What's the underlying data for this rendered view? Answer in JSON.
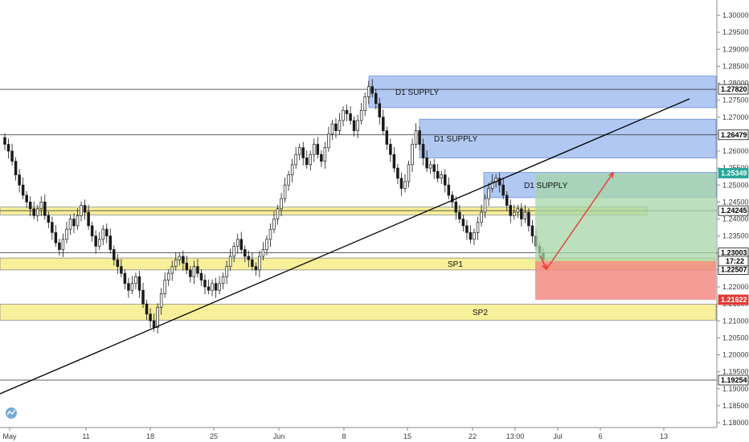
{
  "chart_data": {
    "type": "candlestick",
    "x_tick_labels": [
      "May",
      "11",
      "18",
      "25",
      "Jun",
      "8",
      "15",
      "22",
      "13:00",
      "Jul",
      "6",
      "13"
    ],
    "y_ticks": [
      "1.30000",
      "1.29500",
      "1.29000",
      "1.28500",
      "1.28000",
      "1.27500",
      "1.27000",
      "1.26500",
      "1.26000",
      "1.25500",
      "1.25000",
      "1.24500",
      "1.24000",
      "1.23500",
      "1.23000",
      "1.22500",
      "1.22000",
      "1.21500",
      "1.21000",
      "1.20500",
      "1.20000",
      "1.19500",
      "1.19000",
      "1.18500",
      "1.18000"
    ],
    "ylim": [
      1.1775,
      1.3025
    ],
    "grid": false,
    "horizontal_levels": [
      {
        "price": 1.2782,
        "label": "1.27820",
        "bg": "#ffffff",
        "fg": "#000000"
      },
      {
        "price": 1.26479,
        "label": "1.26479",
        "bg": "#ffffff",
        "fg": "#000000"
      },
      {
        "price": 1.24245,
        "label": "1.24245",
        "bg": "#ffffff",
        "fg": "#000000"
      },
      {
        "price": 1.23003,
        "label": "1.23003",
        "bg": "#ffffff",
        "fg": "#000000"
      },
      {
        "price": 1.19254,
        "label": "1.19254",
        "bg": "#ffffff",
        "fg": "#000000"
      }
    ],
    "price_tags": [
      {
        "price": 1.25349,
        "label": "1.25349",
        "bg": "#26a69a",
        "fg": "#ffffff"
      },
      {
        "price": 1.22507,
        "label": "1.22507",
        "bg": "#ffffff",
        "fg": "#000000"
      },
      {
        "price": 1.21622,
        "label": "1.21622",
        "bg": "#e53935",
        "fg": "#ffffff"
      }
    ],
    "countdown_label": "17:22",
    "zones": [
      {
        "label": "D1 SUPPLY",
        "type": "supply",
        "top": 1.2821,
        "bottom": 1.2728,
        "color": "#8fb0ec"
      },
      {
        "label": "D1 SUPPLY",
        "type": "supply",
        "top": 1.2694,
        "bottom": 1.258,
        "color": "#8fb0ec"
      },
      {
        "label": "D1 SUPPLY",
        "type": "supply",
        "top": 1.2537,
        "bottom": 1.2463,
        "color": "#8fb0ec"
      },
      {
        "label": "",
        "type": "level",
        "top": 1.2435,
        "bottom": 1.2412,
        "color": "#f5ea7a"
      },
      {
        "label": "SP1",
        "type": "support",
        "top": 1.2285,
        "bottom": 1.225,
        "color": "#f5ea7a"
      },
      {
        "label": "SP2",
        "type": "support",
        "top": 1.2149,
        "bottom": 1.2102,
        "color": "#f5ea7a"
      }
    ],
    "position": {
      "entry": 1.2276,
      "target": 1.25349,
      "stop": 1.21622,
      "profit_color": "#a5d6a7",
      "loss_color": "#f28b82"
    },
    "ohlc_closes": [
      1.262,
      1.26,
      1.257,
      1.253,
      1.25,
      1.247,
      1.245,
      1.243,
      1.241,
      1.243,
      1.245,
      1.241,
      1.239,
      1.236,
      1.233,
      1.231,
      1.234,
      1.237,
      1.24,
      1.238,
      1.241,
      1.244,
      1.242,
      1.238,
      1.235,
      1.232,
      1.234,
      1.237,
      1.235,
      1.231,
      1.228,
      1.226,
      1.224,
      1.221,
      1.219,
      1.221,
      1.223,
      1.219,
      1.215,
      1.212,
      1.21,
      1.208,
      1.214,
      1.218,
      1.222,
      1.224,
      1.226,
      1.228,
      1.229,
      1.227,
      1.225,
      1.223,
      1.226,
      1.224,
      1.222,
      1.22,
      1.219,
      1.221,
      1.219,
      1.221,
      1.223,
      1.226,
      1.229,
      1.232,
      1.234,
      1.231,
      1.229,
      1.228,
      1.226,
      1.225,
      1.229,
      1.231,
      1.234,
      1.237,
      1.24,
      1.243,
      1.246,
      1.25,
      1.253,
      1.256,
      1.259,
      1.261,
      1.258,
      1.256,
      1.259,
      1.262,
      1.259,
      1.257,
      1.261,
      1.265,
      1.268,
      1.266,
      1.269,
      1.272,
      1.271,
      1.269,
      1.266,
      1.269,
      1.272,
      1.276,
      1.279,
      1.277,
      1.274,
      1.27,
      1.266,
      1.262,
      1.259,
      1.255,
      1.252,
      1.249,
      1.251,
      1.256,
      1.262,
      1.266,
      1.262,
      1.258,
      1.255,
      1.256,
      1.254,
      1.252,
      1.253,
      1.25,
      1.247,
      1.245,
      1.242,
      1.24,
      1.238,
      1.236,
      1.234,
      1.236,
      1.239,
      1.242,
      1.246,
      1.249,
      1.251,
      1.252,
      1.25,
      1.247,
      1.244,
      1.241,
      1.242,
      1.243,
      1.24,
      1.242,
      1.238,
      1.235,
      1.232,
      1.23,
      1.228
    ],
    "trendline": {
      "start": [
        "2020-05-01",
        1.1885
      ],
      "end": [
        "2020-07-12",
        1.276
      ]
    },
    "projection_arrows": [
      {
        "color": "#e53935",
        "from": [
          1.2315
        ],
        "to": [
          1.2276
        ]
      },
      {
        "color": "#e53935",
        "from": [
          1.2276
        ],
        "to": [
          1.253
        ]
      }
    ],
    "logo": "tradingview-logo"
  }
}
